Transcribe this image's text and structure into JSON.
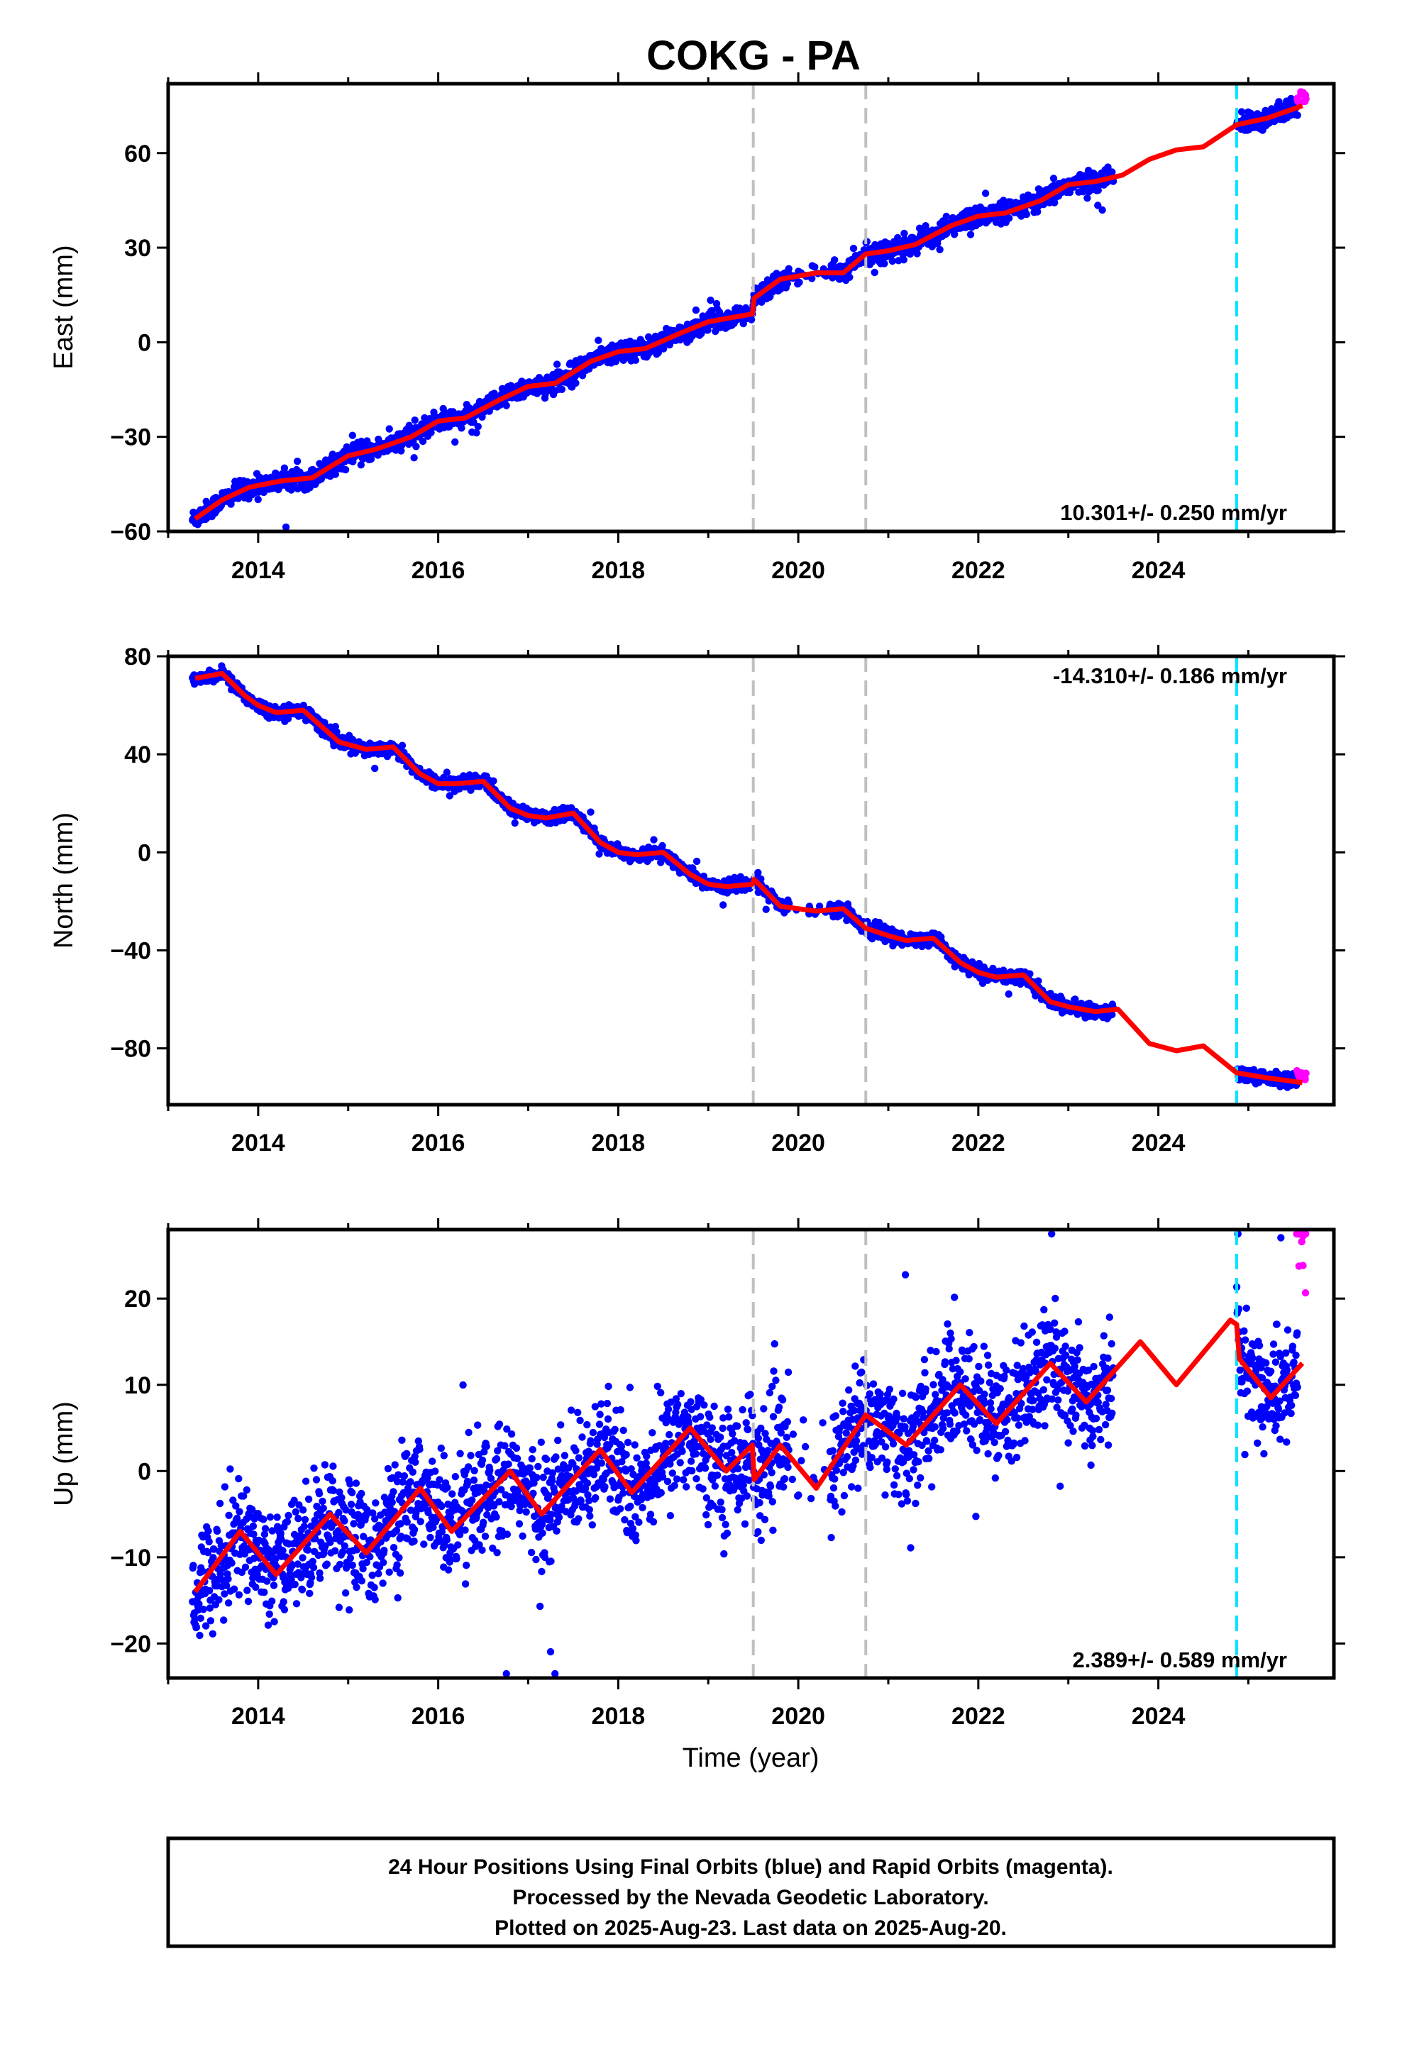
{
  "title": "COKG - PA",
  "colors": {
    "final_orbits": "#0000ff",
    "rapid_orbits": "#ff00ff",
    "model_fit": "#ff0000",
    "offset_lines": "#c0c0c0",
    "equipment_change": "#00e5ff"
  },
  "xlabel": "Time (year)",
  "xticks": [
    "2014",
    "2016",
    "2018",
    "2020",
    "2022",
    "2024"
  ],
  "xlim": [
    2013.0,
    2025.95
  ],
  "offset_events": [
    2019.5,
    2020.75
  ],
  "cyan_event": 2024.87,
  "final_data_span": [
    2013.27,
    2023.5,
    2024.87,
    2025.55
  ],
  "rapid_data_span": [
    2025.55,
    2025.64
  ],
  "footer": {
    "line1": "24 Hour Positions Using Final Orbits (blue) and Rapid Orbits (magenta).",
    "line2": "Processed by the Nevada Geodetic Laboratory.",
    "line3": "Plotted on 2025-Aug-23. Last data on 2025-Aug-20."
  },
  "chart_data": [
    {
      "type": "scatter",
      "component": "east",
      "ylabel": "East (mm)",
      "ylim": [
        -60,
        82
      ],
      "yticks": [
        "60",
        "30",
        "0",
        "−30",
        "−60"
      ],
      "rate_text": "10.301+/- 0.250 mm/yr",
      "noise_mm": 1.5,
      "series": [
        {
          "name": "model",
          "x": [
            2013.3,
            2013.6,
            2013.9,
            2014.25,
            2014.6,
            2015.0,
            2015.3,
            2015.7,
            2016.0,
            2016.3,
            2016.7,
            2017.0,
            2017.3,
            2017.7,
            2018.0,
            2018.3,
            2018.7,
            2019.0,
            2019.49,
            2019.51,
            2019.8,
            2020.2,
            2020.5,
            2020.749,
            2020.751,
            2021.0,
            2021.3,
            2021.7,
            2022.0,
            2022.3,
            2022.7,
            2023.0,
            2023.3,
            2023.6,
            2023.9,
            2024.2,
            2024.5,
            2024.87,
            2025.2,
            2025.6
          ],
          "values": [
            -56,
            -50,
            -46,
            -44,
            -43,
            -36,
            -34,
            -30,
            -25,
            -24,
            -18,
            -14,
            -13,
            -6,
            -3,
            -2,
            3,
            6.5,
            9,
            14,
            20,
            22,
            22,
            28,
            28,
            29,
            31,
            37,
            40,
            41,
            45,
            50,
            51,
            53,
            58,
            61,
            62,
            69,
            71,
            75
          ]
        }
      ]
    },
    {
      "type": "scatter",
      "component": "north",
      "ylabel": "North (mm)",
      "ylim": [
        -103,
        80
      ],
      "yticks": [
        "80",
        "40",
        "0",
        "−40",
        "−80"
      ],
      "rate_text": "-14.310+/- 0.186 mm/yr",
      "noise_mm": 1.3,
      "series": [
        {
          "name": "model",
          "x": [
            2013.3,
            2013.6,
            2013.85,
            2014.0,
            2014.2,
            2014.5,
            2014.9,
            2015.2,
            2015.5,
            2015.8,
            2016.0,
            2016.2,
            2016.5,
            2016.8,
            2017.0,
            2017.2,
            2017.5,
            2017.8,
            2018.0,
            2018.2,
            2018.5,
            2018.8,
            2019.0,
            2019.2,
            2019.49,
            2019.51,
            2019.8,
            2020.2,
            2020.5,
            2020.749,
            2020.751,
            2021.0,
            2021.2,
            2021.5,
            2021.8,
            2022.0,
            2022.2,
            2022.5,
            2022.8,
            2023.0,
            2023.3,
            2023.55,
            2023.9,
            2024.2,
            2024.5,
            2024.87,
            2025.2,
            2025.6
          ],
          "values": [
            71,
            73,
            64,
            60,
            57,
            58,
            45,
            42,
            43,
            32,
            28,
            28,
            29,
            18,
            15,
            14,
            16,
            4,
            0,
            -1,
            0,
            -9,
            -13,
            -14,
            -13,
            -11,
            -22,
            -24,
            -23,
            -31,
            -31,
            -34,
            -36,
            -35,
            -45,
            -49,
            -51,
            -50,
            -61,
            -63,
            -65,
            -64,
            -78,
            -81,
            -79,
            -90,
            -92,
            -94
          ]
        }
      ]
    },
    {
      "type": "scatter",
      "component": "up",
      "ylabel": "Up (mm)",
      "ylim": [
        -24,
        28
      ],
      "yticks": [
        "20",
        "10",
        "0",
        "−10",
        "−20"
      ],
      "rate_text": "2.389+/- 0.589 mm/yr",
      "noise_mm": 3.3,
      "series": [
        {
          "name": "model",
          "x": [
            2013.3,
            2013.8,
            2014.2,
            2014.8,
            2015.2,
            2015.8,
            2016.15,
            2016.8,
            2017.15,
            2017.8,
            2018.15,
            2018.8,
            2019.2,
            2019.49,
            2019.51,
            2019.8,
            2020.2,
            2020.749,
            2020.751,
            2021.2,
            2021.8,
            2022.2,
            2022.8,
            2023.2,
            2023.8,
            2024.2,
            2024.8,
            2024.87,
            2024.9,
            2025.25,
            2025.6
          ],
          "values": [
            -14,
            -7,
            -12,
            -5,
            -9.5,
            -2,
            -7,
            0,
            -5,
            2.5,
            -2.5,
            5,
            0,
            3,
            -1,
            3,
            -2,
            6.5,
            6.5,
            3,
            10,
            5.5,
            12.5,
            8,
            15,
            10,
            17.5,
            17,
            13,
            8.5,
            12.5
          ]
        }
      ]
    }
  ]
}
